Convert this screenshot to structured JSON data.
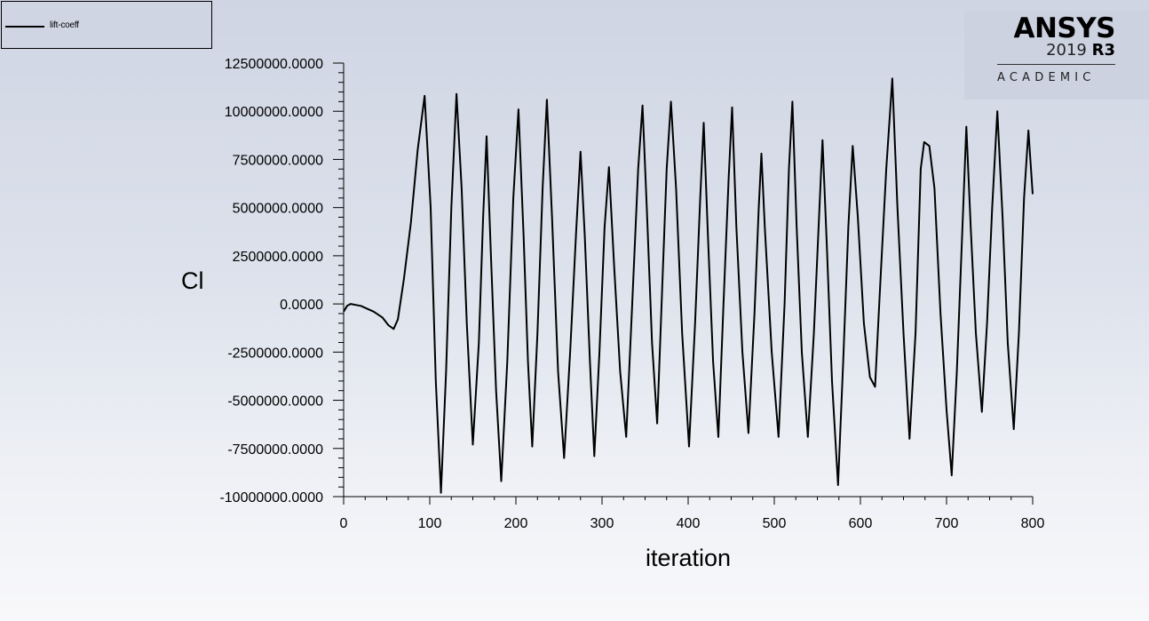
{
  "legend": {
    "entries": [
      {
        "label": "lift-coeff",
        "color": "#000000"
      }
    ]
  },
  "logo": {
    "brand": "ANSYS",
    "year": "2019",
    "release": "R3",
    "edition": "ACADEMIC"
  },
  "chart_data": {
    "type": "line",
    "title": "",
    "xlabel": "iteration",
    "ylabel": "Cl",
    "xlim": [
      0,
      800
    ],
    "ylim": [
      -10000000,
      12500000
    ],
    "grid": false,
    "legend_position": "top-left",
    "x_ticks": [
      "0",
      "100",
      "200",
      "300",
      "400",
      "500",
      "600",
      "700",
      "800"
    ],
    "y_ticks": [
      "12500000.0000",
      "10000000.0000",
      "7500000.0000",
      "5000000.0000",
      "2500000.0000",
      "0.0000",
      "-2500000.0000",
      "-5000000.0000",
      "-7500000.0000",
      "-10000000.0000"
    ],
    "series": [
      {
        "name": "lift-coeff",
        "color": "#000000",
        "x": [
          0,
          4,
          8,
          20,
          35,
          45,
          52,
          58,
          63,
          70,
          78,
          86,
          94,
          101,
          107,
          113,
          119,
          125,
          131,
          137,
          143,
          150,
          157,
          162,
          166,
          171,
          177,
          183,
          190,
          197,
          203,
          209,
          214,
          219,
          225,
          231,
          236,
          242,
          249,
          256,
          263,
          270,
          275,
          280,
          286,
          291,
          297,
          303,
          308,
          314,
          321,
          328,
          335,
          342,
          347,
          352,
          358,
          364,
          370,
          375,
          380,
          386,
          393,
          401,
          408,
          414,
          418,
          423,
          429,
          435,
          441,
          447,
          451,
          456,
          463,
          470,
          477,
          482,
          485,
          489,
          497,
          505,
          512,
          517,
          521,
          526,
          532,
          539,
          546,
          552,
          556,
          561,
          567,
          574,
          580,
          586,
          591,
          597,
          604,
          611,
          617,
          623,
          630,
          637,
          643,
          650,
          657,
          664,
          670,
          674,
          680,
          686,
          693,
          700,
          706,
          712,
          718,
          723,
          728,
          734,
          741,
          747,
          753,
          759,
          765,
          771,
          778,
          784,
          790,
          795,
          800
        ],
        "values": [
          -400000,
          -100000,
          0,
          -100000,
          -400000,
          -700000,
          -1100000,
          -1300000,
          -800000,
          1300000,
          4200000,
          8000000,
          10800000,
          5000000,
          -4000000,
          -9800000,
          -3500000,
          5000000,
          10900000,
          6000000,
          -1000000,
          -7300000,
          -2000000,
          4500000,
          8700000,
          2500000,
          -4500000,
          -9200000,
          -3000000,
          5500000,
          10100000,
          3500000,
          -3000000,
          -7400000,
          -1500000,
          6000000,
          10600000,
          4500000,
          -3500000,
          -8000000,
          -2500000,
          3800000,
          7900000,
          3500000,
          -3000000,
          -7900000,
          -2500000,
          4000000,
          7100000,
          2000000,
          -3500000,
          -6900000,
          0,
          7000000,
          10300000,
          5000000,
          -2000000,
          -6200000,
          1000000,
          7000000,
          10500000,
          6000000,
          -1500000,
          -7400000,
          -1000000,
          5500000,
          9400000,
          3500000,
          -3000000,
          -6900000,
          0,
          6500000,
          10200000,
          4000000,
          -2500000,
          -6700000,
          -500000,
          5000000,
          7800000,
          4000000,
          -2500000,
          -6900000,
          0,
          7000000,
          10500000,
          4000000,
          -2500000,
          -6900000,
          -1500000,
          4500000,
          8500000,
          3000000,
          -4000000,
          -9400000,
          -3000000,
          4000000,
          8200000,
          4500000,
          -1000000,
          -3800000,
          -4300000,
          1000000,
          7000000,
          11700000,
          5000000,
          -1500000,
          -7000000,
          -1500000,
          7000000,
          8400000,
          8200000,
          6000000,
          -500000,
          -5500000,
          -8900000,
          -3500000,
          3500000,
          9200000,
          4000000,
          -1500000,
          -5600000,
          -1000000,
          5000000,
          10000000,
          4500000,
          -2000000,
          -6500000,
          -1500000,
          5500000,
          9000000,
          5700000
        ]
      }
    ]
  }
}
